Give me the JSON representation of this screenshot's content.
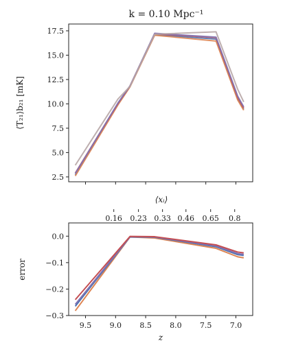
{
  "chart_data": [
    {
      "type": "line",
      "title": "k = 0.10 Mpc⁻¹",
      "ylabel": "⟨T₂₁⟩b₂₁ [mK]",
      "xlabel": "",
      "top_axis": {
        "label": "⟨xᵢ⟩",
        "ticks": [
          {
            "z": 9.03,
            "label": "0.16"
          },
          {
            "z": 8.62,
            "label": "0.23"
          },
          {
            "z": 8.22,
            "label": "0.33"
          },
          {
            "z": 7.83,
            "label": "0.46"
          },
          {
            "z": 7.42,
            "label": "0.65"
          },
          {
            "z": 7.02,
            "label": "0.8"
          }
        ]
      },
      "x_reversed": true,
      "xlim": [
        9.78,
        6.72
      ],
      "ylim": [
        2.0,
        18.2
      ],
      "yticks": [
        2.5,
        5.0,
        7.5,
        10.0,
        12.5,
        15.0,
        17.5
      ],
      "x": [
        9.67,
        8.96,
        8.76,
        8.35,
        7.33,
        6.97,
        6.87
      ],
      "series": [
        {
          "color": "#4c72b0",
          "values": [
            2.7,
            10.0,
            11.8,
            17.1,
            16.65,
            10.5,
            9.45
          ]
        },
        {
          "color": "#dd8452",
          "values": [
            2.6,
            9.9,
            11.75,
            17.05,
            16.45,
            10.4,
            9.35
          ]
        },
        {
          "color": "#c44e52",
          "values": [
            2.9,
            10.05,
            11.85,
            17.2,
            16.8,
            10.7,
            9.6
          ]
        },
        {
          "color": "#8172b3",
          "values": [
            2.85,
            10.1,
            11.85,
            17.25,
            16.85,
            10.8,
            9.7
          ]
        },
        {
          "color": "#b7a6a6",
          "values": [
            3.7,
            10.5,
            11.8,
            17.15,
            17.4,
            11.5,
            10.2
          ]
        }
      ]
    },
    {
      "type": "line",
      "xlabel": "z",
      "ylabel": "error",
      "x_reversed": true,
      "xlim": [
        9.78,
        6.72
      ],
      "ylim": [
        -0.3,
        0.05
      ],
      "xticks": [
        9.5,
        9.0,
        8.5,
        8.0,
        7.5,
        7.0
      ],
      "xtick_labels": [
        "9.5",
        "9.0",
        "8.5",
        "8.0",
        "7.5",
        "7.0"
      ],
      "yticks": [
        0.0,
        -0.1,
        -0.2,
        -0.3
      ],
      "ytick_labels": [
        "0.0",
        "−0.1",
        "−0.2",
        "−0.3"
      ],
      "x": [
        9.67,
        8.76,
        8.35,
        7.33,
        6.97,
        6.87
      ],
      "series": [
        {
          "color": "#dd8452",
          "values": [
            -0.282,
            -0.003,
            -0.007,
            -0.046,
            -0.078,
            -0.082
          ]
        },
        {
          "color": "#4c72b0",
          "values": [
            -0.265,
            -0.003,
            -0.004,
            -0.04,
            -0.07,
            -0.073
          ]
        },
        {
          "color": "#8172b3",
          "values": [
            -0.258,
            -0.002,
            -0.003,
            -0.037,
            -0.066,
            -0.069
          ]
        },
        {
          "color": "#c44e52",
          "values": [
            -0.24,
            -0.001,
            -0.002,
            -0.033,
            -0.06,
            -0.063
          ]
        }
      ]
    }
  ]
}
